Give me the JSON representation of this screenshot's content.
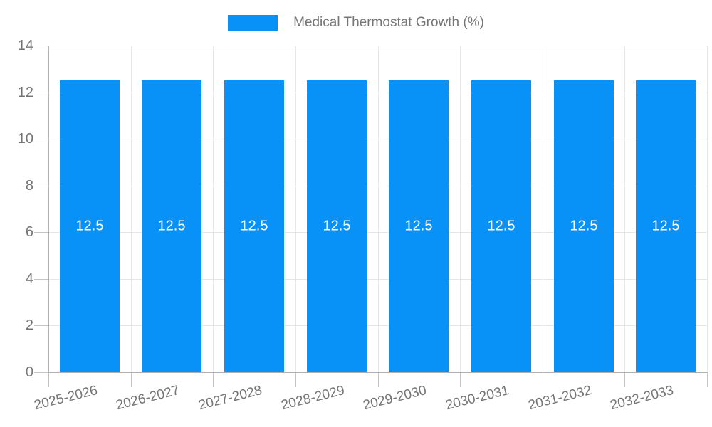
{
  "legend": {
    "label": "Medical Thermostat Growth (%)"
  },
  "chart_data": {
    "type": "bar",
    "title": "",
    "series_name": "Medical Thermostat Growth (%)",
    "categories": [
      "2025-2026",
      "2026-2027",
      "2027-2028",
      "2028-2029",
      "2029-2030",
      "2030-2031",
      "2031-2032",
      "2032-2033"
    ],
    "values": [
      12.5,
      12.5,
      12.5,
      12.5,
      12.5,
      12.5,
      12.5,
      12.5
    ],
    "xlabel": "",
    "ylabel": "",
    "ylim": [
      0,
      14
    ],
    "yticks": [
      0,
      2,
      4,
      6,
      8,
      10,
      12,
      14
    ],
    "grid": true,
    "legend_position": "top-center",
    "bar_color": "#0892f8",
    "bar_label_color": "#ffffff",
    "axis_text_color": "#757575",
    "gridline_color": "#e6e6e6",
    "axis_line_color": "#b0b0b0",
    "x_label_rotation_deg": -14
  }
}
